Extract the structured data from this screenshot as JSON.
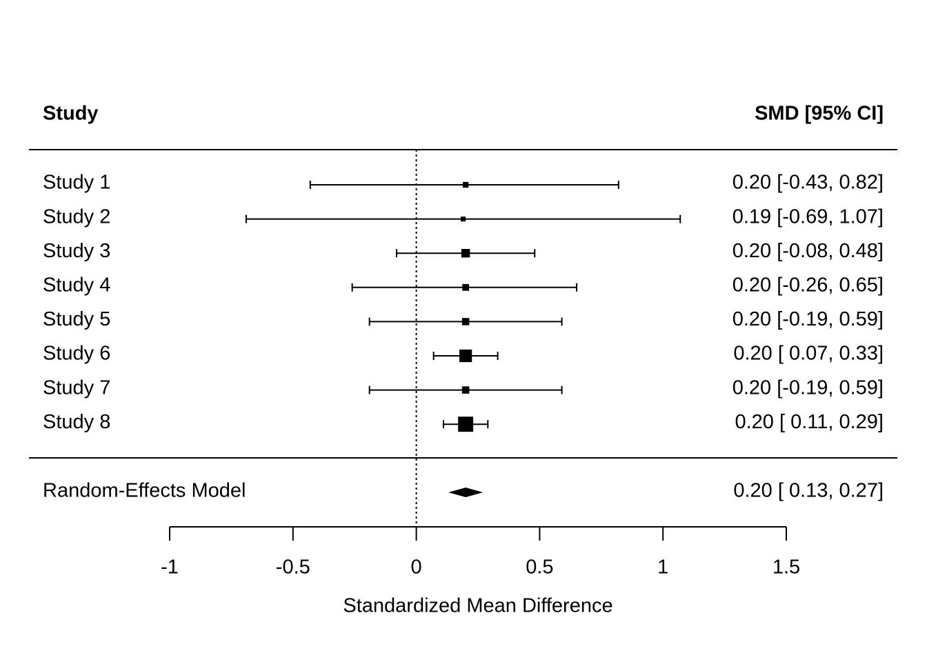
{
  "chart_data": {
    "type": "forest",
    "column_headers": [
      "Study",
      "SMD [95% CI]"
    ],
    "categories": [
      "Study 1",
      "Study 2",
      "Study 3",
      "Study 4",
      "Study 5",
      "Study 6",
      "Study 7",
      "Study 8"
    ],
    "values": [
      0.2,
      0.19,
      0.2,
      0.2,
      0.2,
      0.2,
      0.2,
      0.2
    ],
    "lower": [
      -0.43,
      -0.69,
      -0.08,
      -0.26,
      -0.19,
      0.07,
      -0.19,
      0.11
    ],
    "upper": [
      0.82,
      1.07,
      0.48,
      0.65,
      0.59,
      0.33,
      0.59,
      0.29
    ],
    "value_labels": [
      "0.20 [-0.43, 0.82]",
      "0.19 [-0.69, 1.07]",
      "0.20 [-0.08, 0.48]",
      "0.20 [-0.26, 0.65]",
      "0.20 [-0.19, 0.59]",
      "0.20 [ 0.07, 0.33]",
      "0.20 [-0.19, 0.59]",
      "0.20 [ 0.11, 0.29]"
    ],
    "model": {
      "label": "Random-Effects Model",
      "estimate": 0.2,
      "lower": 0.13,
      "upper": 0.27,
      "value_label": "0.20 [ 0.13, 0.27]"
    },
    "refline": 0,
    "xlim": [
      -1,
      1.5
    ],
    "xticks": [
      -1,
      -0.5,
      0,
      0.5,
      1,
      1.5
    ],
    "xlabel": "Standardized Mean Difference",
    "color": "#000000"
  }
}
